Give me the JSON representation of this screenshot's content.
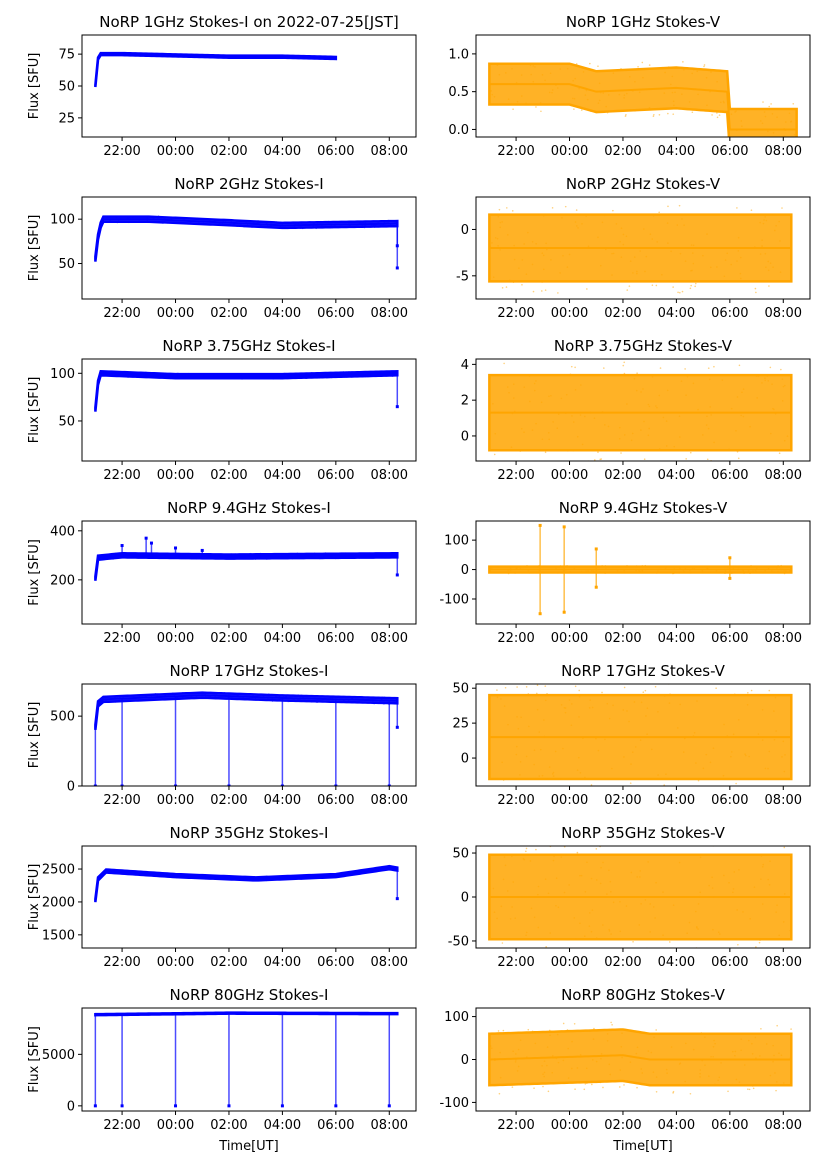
{
  "figure": {
    "series_colors": {
      "stokes_i": "#0000ff",
      "stokes_v": "#ffa500"
    },
    "x_tick_labels": [
      "22:00",
      "00:00",
      "02:00",
      "04:00",
      "06:00",
      "08:00"
    ],
    "x_axis_label": "Time[UT]",
    "y_axis_label": "Flux [SFU]"
  },
  "chart_data": [
    {
      "type": "scatter",
      "title": "NoRP 1GHz Stokes-I on 2022-07-25[JST]",
      "ylabel": "Flux [SFU]",
      "xlabel": "",
      "color": "#0000ff",
      "ylim": [
        10,
        90
      ],
      "yticks": [
        25,
        50,
        75
      ],
      "profile": [
        [
          21.0,
          50
        ],
        [
          21.05,
          68
        ],
        [
          21.15,
          75
        ],
        [
          22.0,
          75
        ],
        [
          24.0,
          74
        ],
        [
          26.0,
          73
        ],
        [
          28.0,
          73
        ],
        [
          30.0,
          72
        ]
      ],
      "x_end": 30.0,
      "spread": 0.02,
      "outliers": []
    },
    {
      "type": "scatter",
      "title": "NoRP 1GHz Stokes-V",
      "ylabel": "",
      "xlabel": "",
      "color": "#ffa500",
      "ylim": [
        -0.1,
        1.25
      ],
      "yticks": [
        0.0,
        0.5,
        1.0
      ],
      "profile": [
        [
          21.0,
          0.6
        ],
        [
          24.0,
          0.6
        ],
        [
          25.0,
          0.5
        ],
        [
          28.0,
          0.55
        ],
        [
          29.9,
          0.5
        ],
        [
          30.0,
          0.0
        ],
        [
          32.5,
          0.0
        ]
      ],
      "x_end": 32.5,
      "spread": 0.4,
      "outliers": []
    },
    {
      "type": "scatter",
      "title": "NoRP 2GHz Stokes-I",
      "ylabel": "Flux [SFU]",
      "xlabel": "",
      "color": "#0000ff",
      "ylim": [
        10,
        125
      ],
      "yticks": [
        50,
        100
      ],
      "profile": [
        [
          21.0,
          55
        ],
        [
          21.1,
          80
        ],
        [
          21.25,
          100
        ],
        [
          23.0,
          100
        ],
        [
          26.0,
          96
        ],
        [
          28.0,
          93
        ],
        [
          32.3,
          95
        ]
      ],
      "x_end": 32.3,
      "spread": 0.05,
      "outliers": [
        [
          32.3,
          45
        ],
        [
          32.3,
          70
        ]
      ]
    },
    {
      "type": "scatter",
      "title": "NoRP 2GHz Stokes-V",
      "ylabel": "",
      "xlabel": "",
      "color": "#ffa500",
      "ylim": [
        -7.5,
        3.5
      ],
      "yticks": [
        -5,
        0
      ],
      "profile": [
        [
          21.0,
          -2.0
        ],
        [
          32.3,
          -2.0
        ]
      ],
      "x_end": 32.3,
      "spread": 3.6,
      "outliers": []
    },
    {
      "type": "scatter",
      "title": "NoRP 3.75GHz Stokes-I",
      "ylabel": "Flux [SFU]",
      "xlabel": "",
      "color": "#0000ff",
      "ylim": [
        8,
        115
      ],
      "yticks": [
        50,
        100
      ],
      "profile": [
        [
          21.0,
          62
        ],
        [
          21.05,
          85
        ],
        [
          21.2,
          100
        ],
        [
          24.0,
          97
        ],
        [
          28.0,
          97
        ],
        [
          32.3,
          100
        ]
      ],
      "x_end": 32.3,
      "spread": 0.04,
      "outliers": [
        [
          32.3,
          65
        ]
      ]
    },
    {
      "type": "scatter",
      "title": "NoRP 3.75GHz Stokes-V",
      "ylabel": "",
      "xlabel": "",
      "color": "#ffa500",
      "ylim": [
        -1.4,
        4.3
      ],
      "yticks": [
        0,
        2,
        4
      ],
      "profile": [
        [
          21.0,
          1.3
        ],
        [
          32.3,
          1.3
        ]
      ],
      "x_end": 32.3,
      "spread": 2.1,
      "outliers": []
    },
    {
      "type": "scatter",
      "title": "NoRP 9.4GHz Stokes-I",
      "ylabel": "Flux [SFU]",
      "xlabel": "",
      "color": "#0000ff",
      "ylim": [
        20,
        440
      ],
      "yticks": [
        200,
        400
      ],
      "profile": [
        [
          21.0,
          205
        ],
        [
          21.05,
          290
        ],
        [
          22.0,
          300
        ],
        [
          26.0,
          295
        ],
        [
          32.3,
          300
        ]
      ],
      "x_end": 32.3,
      "spread": 0.04,
      "outliers": [
        [
          22.9,
          370
        ],
        [
          23.1,
          350
        ],
        [
          24.0,
          330
        ],
        [
          22.0,
          340
        ],
        [
          25.0,
          320
        ],
        [
          32.3,
          220
        ]
      ]
    },
    {
      "type": "scatter",
      "title": "NoRP 9.4GHz Stokes-V",
      "ylabel": "",
      "xlabel": "",
      "color": "#ffa500",
      "ylim": [
        -185,
        165
      ],
      "yticks": [
        -100,
        0,
        100
      ],
      "profile": [
        [
          21.0,
          0
        ],
        [
          32.3,
          0
        ]
      ],
      "x_end": 32.3,
      "spread": 10,
      "outliers": [
        [
          22.9,
          150
        ],
        [
          22.9,
          -150
        ],
        [
          23.8,
          145
        ],
        [
          23.8,
          -145
        ],
        [
          25.0,
          70
        ],
        [
          25.0,
          -60
        ],
        [
          30.0,
          40
        ],
        [
          30.0,
          -30
        ]
      ]
    },
    {
      "type": "scatter",
      "title": "NoRP 17GHz Stokes-I",
      "ylabel": "Flux [SFU]",
      "xlabel": "",
      "color": "#0000ff",
      "ylim": [
        0,
        730
      ],
      "yticks": [
        0,
        500
      ],
      "profile": [
        [
          21.0,
          420
        ],
        [
          21.05,
          580
        ],
        [
          21.3,
          620
        ],
        [
          25.0,
          650
        ],
        [
          28.0,
          630
        ],
        [
          32.3,
          610
        ]
      ],
      "x_end": 32.3,
      "spread": 0.05,
      "outliers": [
        [
          21.0,
          0
        ],
        [
          22.0,
          0
        ],
        [
          24.0,
          0
        ],
        [
          26.0,
          0
        ],
        [
          28.0,
          0
        ],
        [
          30.0,
          0
        ],
        [
          32.0,
          0
        ],
        [
          32.3,
          420
        ]
      ]
    },
    {
      "type": "scatter",
      "title": "NoRP 17GHz Stokes-V",
      "ylabel": "",
      "xlabel": "",
      "color": "#ffa500",
      "ylim": [
        -20,
        53
      ],
      "yticks": [
        0,
        25,
        50
      ],
      "profile": [
        [
          21.0,
          15
        ],
        [
          32.3,
          15
        ]
      ],
      "x_end": 32.3,
      "spread": 30,
      "outliers": []
    },
    {
      "type": "scatter",
      "title": "NoRP 35GHz Stokes-I",
      "ylabel": "Flux [SFU]",
      "xlabel": "",
      "color": "#0000ff",
      "ylim": [
        1300,
        2850
      ],
      "yticks": [
        1500,
        2000,
        2500
      ],
      "profile": [
        [
          21.0,
          2020
        ],
        [
          21.1,
          2350
        ],
        [
          21.4,
          2470
        ],
        [
          24.0,
          2400
        ],
        [
          27.0,
          2350
        ],
        [
          30.0,
          2400
        ],
        [
          32.0,
          2520
        ],
        [
          32.3,
          2500
        ]
      ],
      "x_end": 32.3,
      "spread": 0.03,
      "outliers": [
        [
          32.3,
          2050
        ]
      ]
    },
    {
      "type": "scatter",
      "title": "NoRP 35GHz Stokes-V",
      "ylabel": "",
      "xlabel": "",
      "color": "#ffa500",
      "ylim": [
        -58,
        58
      ],
      "yticks": [
        -50,
        0,
        50
      ],
      "profile": [
        [
          21.0,
          0
        ],
        [
          32.3,
          0
        ]
      ],
      "x_end": 32.3,
      "spread": 48,
      "outliers": []
    },
    {
      "type": "scatter",
      "title": "NoRP 80GHz Stokes-I",
      "ylabel": "Flux [SFU]",
      "xlabel": "Time[UT]",
      "color": "#0000ff",
      "ylim": [
        -500,
        9500
      ],
      "yticks": [
        0,
        5000
      ],
      "profile": [
        [
          21.0,
          8850
        ],
        [
          26.0,
          9000
        ],
        [
          32.3,
          8950
        ]
      ],
      "x_end": 32.3,
      "spread": 0.01,
      "outliers": [
        [
          21.0,
          0
        ],
        [
          22.0,
          0
        ],
        [
          24.0,
          0
        ],
        [
          26.0,
          0
        ],
        [
          28.0,
          0
        ],
        [
          30.0,
          0
        ],
        [
          32.0,
          0
        ]
      ]
    },
    {
      "type": "scatter",
      "title": "NoRP 80GHz Stokes-V",
      "ylabel": "",
      "xlabel": "Time[UT]",
      "color": "#ffa500",
      "ylim": [
        -120,
        120
      ],
      "yticks": [
        -100,
        0,
        100
      ],
      "profile": [
        [
          21.0,
          0
        ],
        [
          26.0,
          10
        ],
        [
          27.0,
          0
        ],
        [
          32.3,
          0
        ]
      ],
      "x_end": 32.3,
      "spread": 60,
      "outliers": []
    }
  ]
}
